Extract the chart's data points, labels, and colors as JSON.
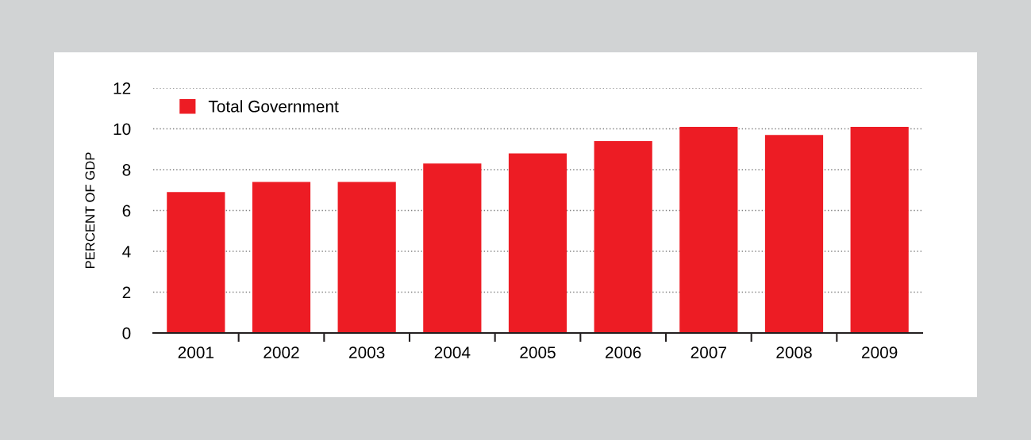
{
  "chart_data": {
    "type": "bar",
    "ylabel": "PERCENT OF GDP",
    "categories": [
      "2001",
      "2002",
      "2003",
      "2004",
      "2005",
      "2006",
      "2007",
      "2008",
      "2009"
    ],
    "series": [
      {
        "name": "Total Government",
        "color": "#ed1c24",
        "values": [
          6.9,
          7.4,
          7.4,
          8.3,
          8.8,
          9.4,
          10.1,
          9.7,
          10.1
        ]
      }
    ],
    "ylim": [
      0,
      12
    ],
    "yticks": [
      0,
      2,
      4,
      6,
      8,
      10,
      12
    ],
    "grid": "y",
    "legend": "top left"
  }
}
